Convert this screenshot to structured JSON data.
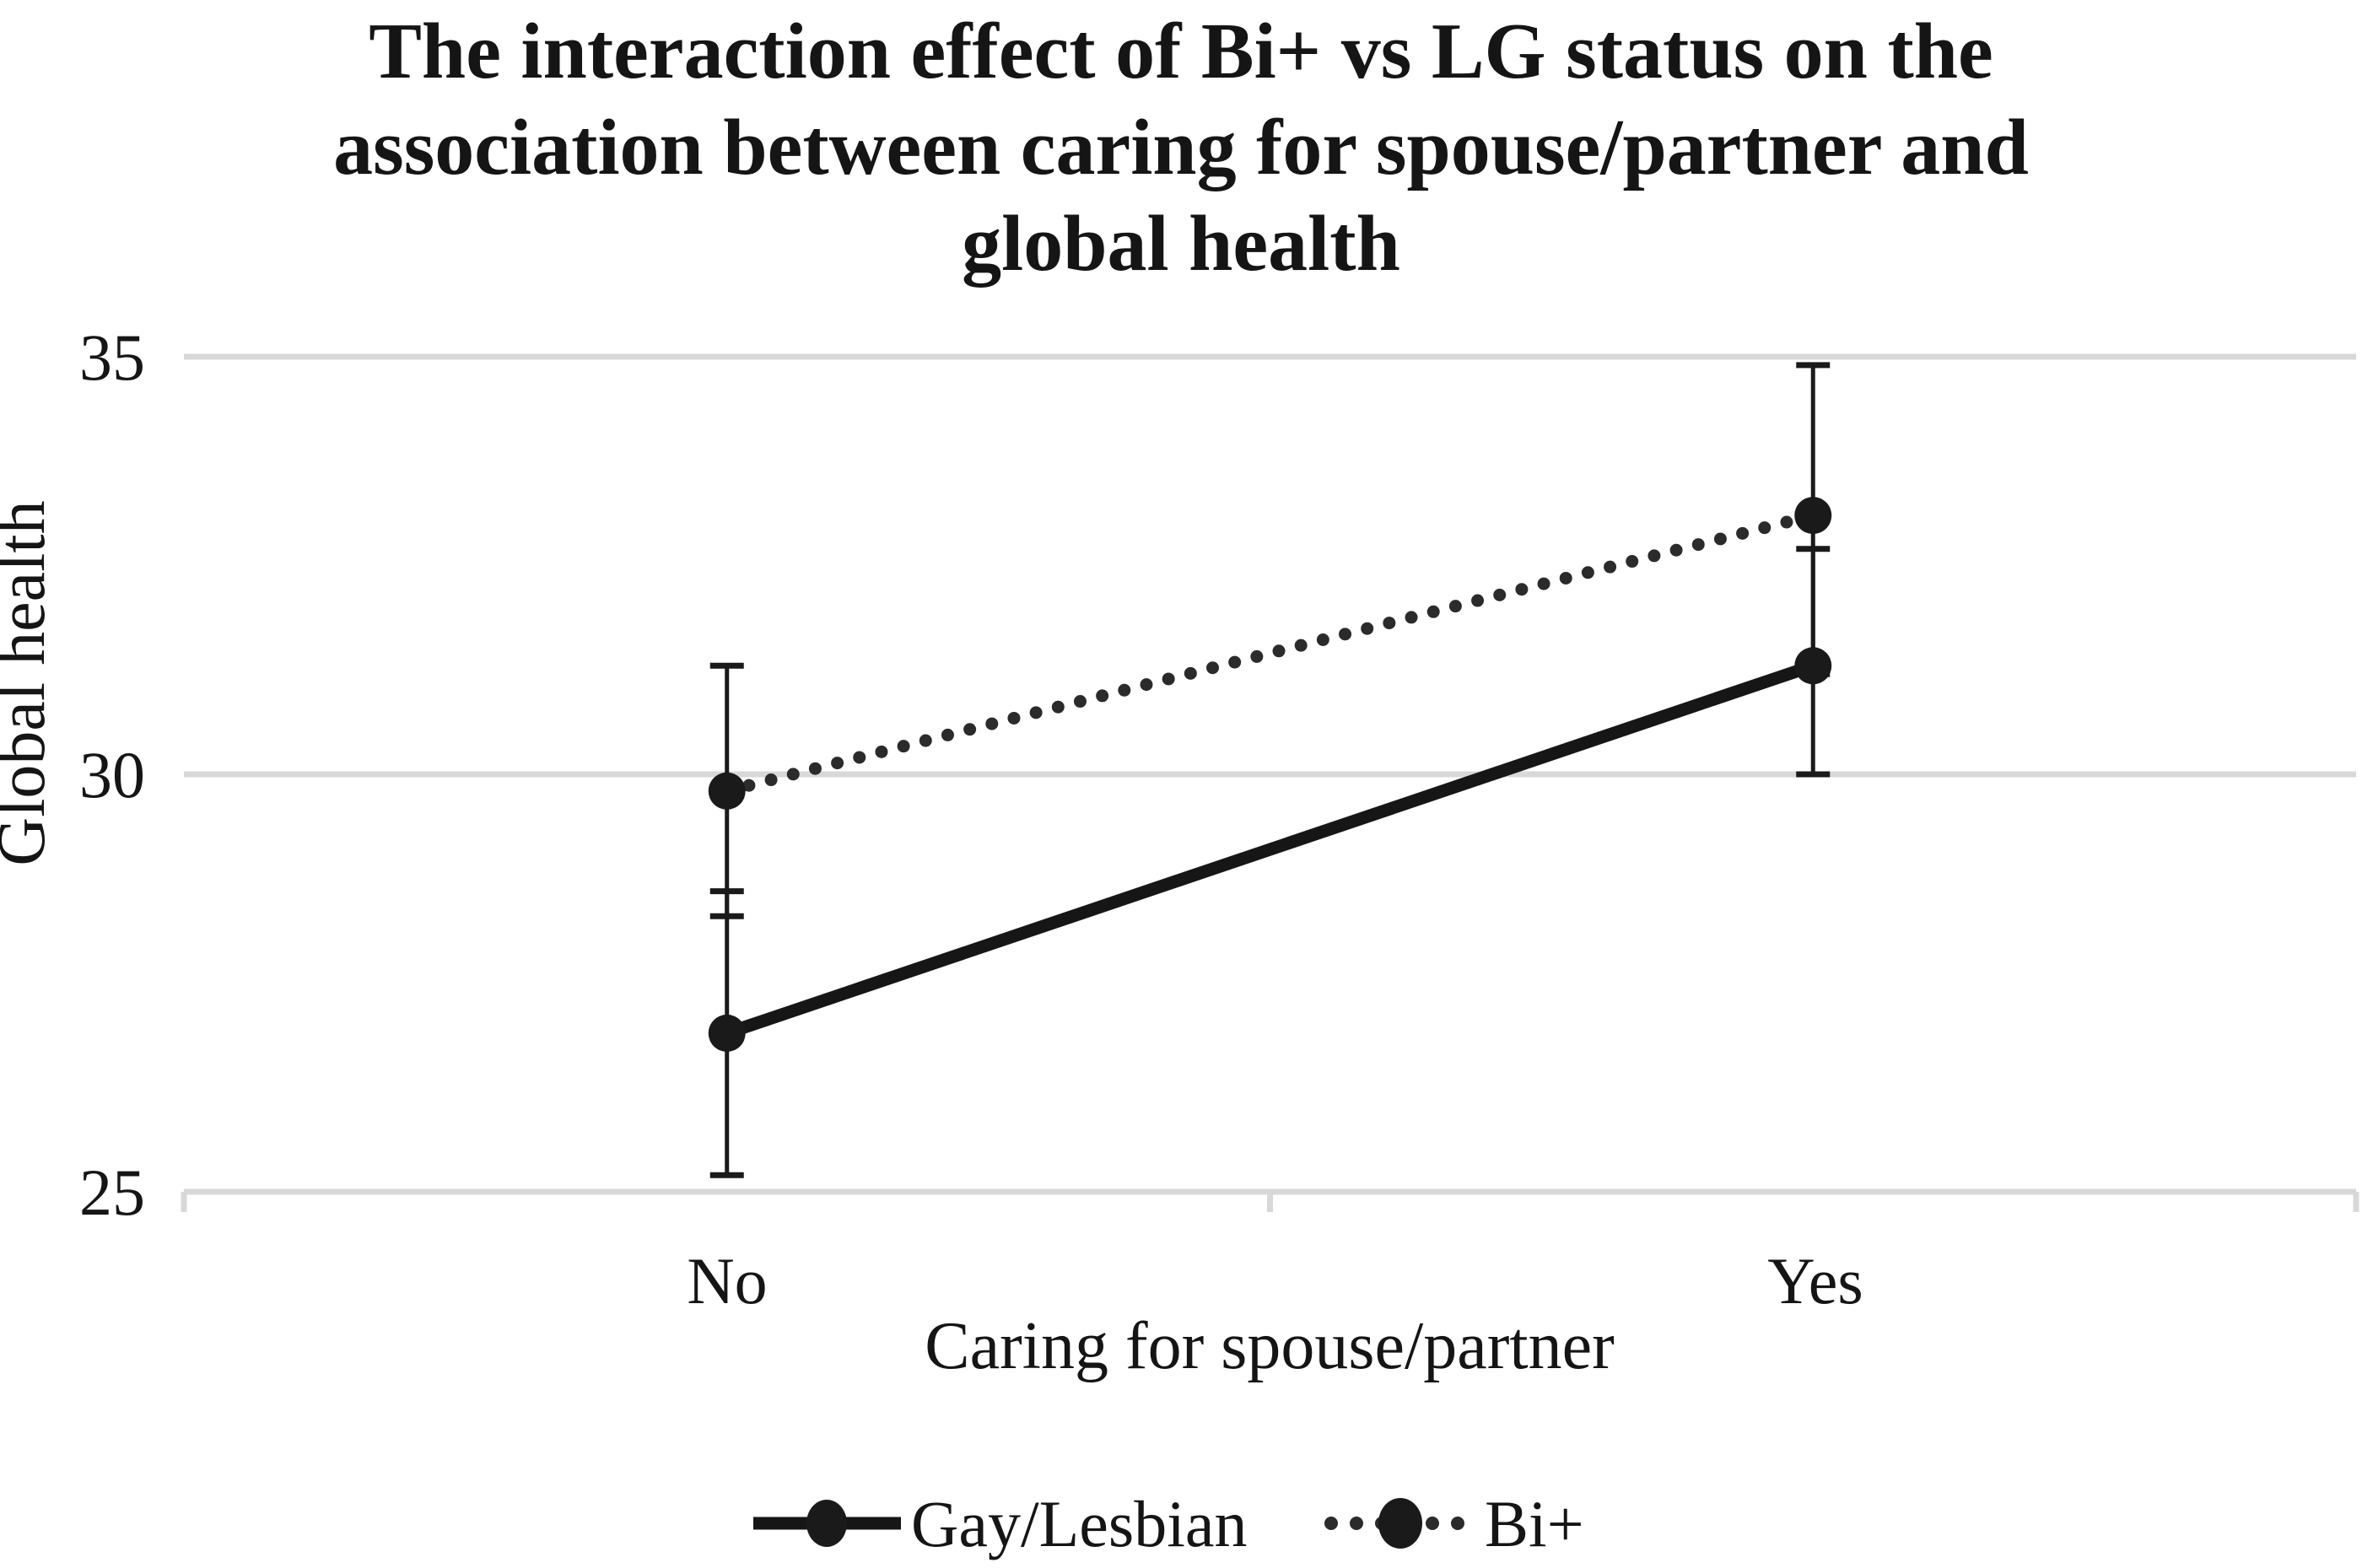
{
  "chart_data": {
    "type": "line",
    "title": "The interaction effect of Bi+ vs LG status on the association between caring for spouse/partner and global health",
    "title_lines": [
      "The interaction effect of Bi+ vs LG status on the",
      "association between caring for spouse/partner and",
      "global health"
    ],
    "xlabel": "Caring for spouse/partner",
    "ylabel": "Global health",
    "categories": [
      "No",
      "Yes"
    ],
    "ylim": [
      25,
      35
    ],
    "yticks": [
      35,
      30,
      25
    ],
    "grid": true,
    "legend_position": "bottom-center",
    "series": [
      {
        "name": "Gay/Lesbian",
        "style": "solid",
        "marker": "filled-circle",
        "values": [
          26.9,
          31.3
        ],
        "ci_lower": [
          25.2,
          30.0
        ],
        "ci_upper": [
          28.6,
          32.7
        ]
      },
      {
        "name": "Bi+",
        "style": "dotted",
        "marker": "filled-circle",
        "values": [
          29.8,
          33.1
        ],
        "ci_lower": [
          28.3,
          31.2
        ],
        "ci_upper": [
          31.3,
          34.9
        ]
      }
    ],
    "colors": {
      "line_solid": "#161616",
      "line_dotted": "#2b2b2b",
      "marker": "#1a1a1a",
      "gridline": "#d8d8d8",
      "text": "#151515",
      "background": "#ffffff"
    }
  }
}
